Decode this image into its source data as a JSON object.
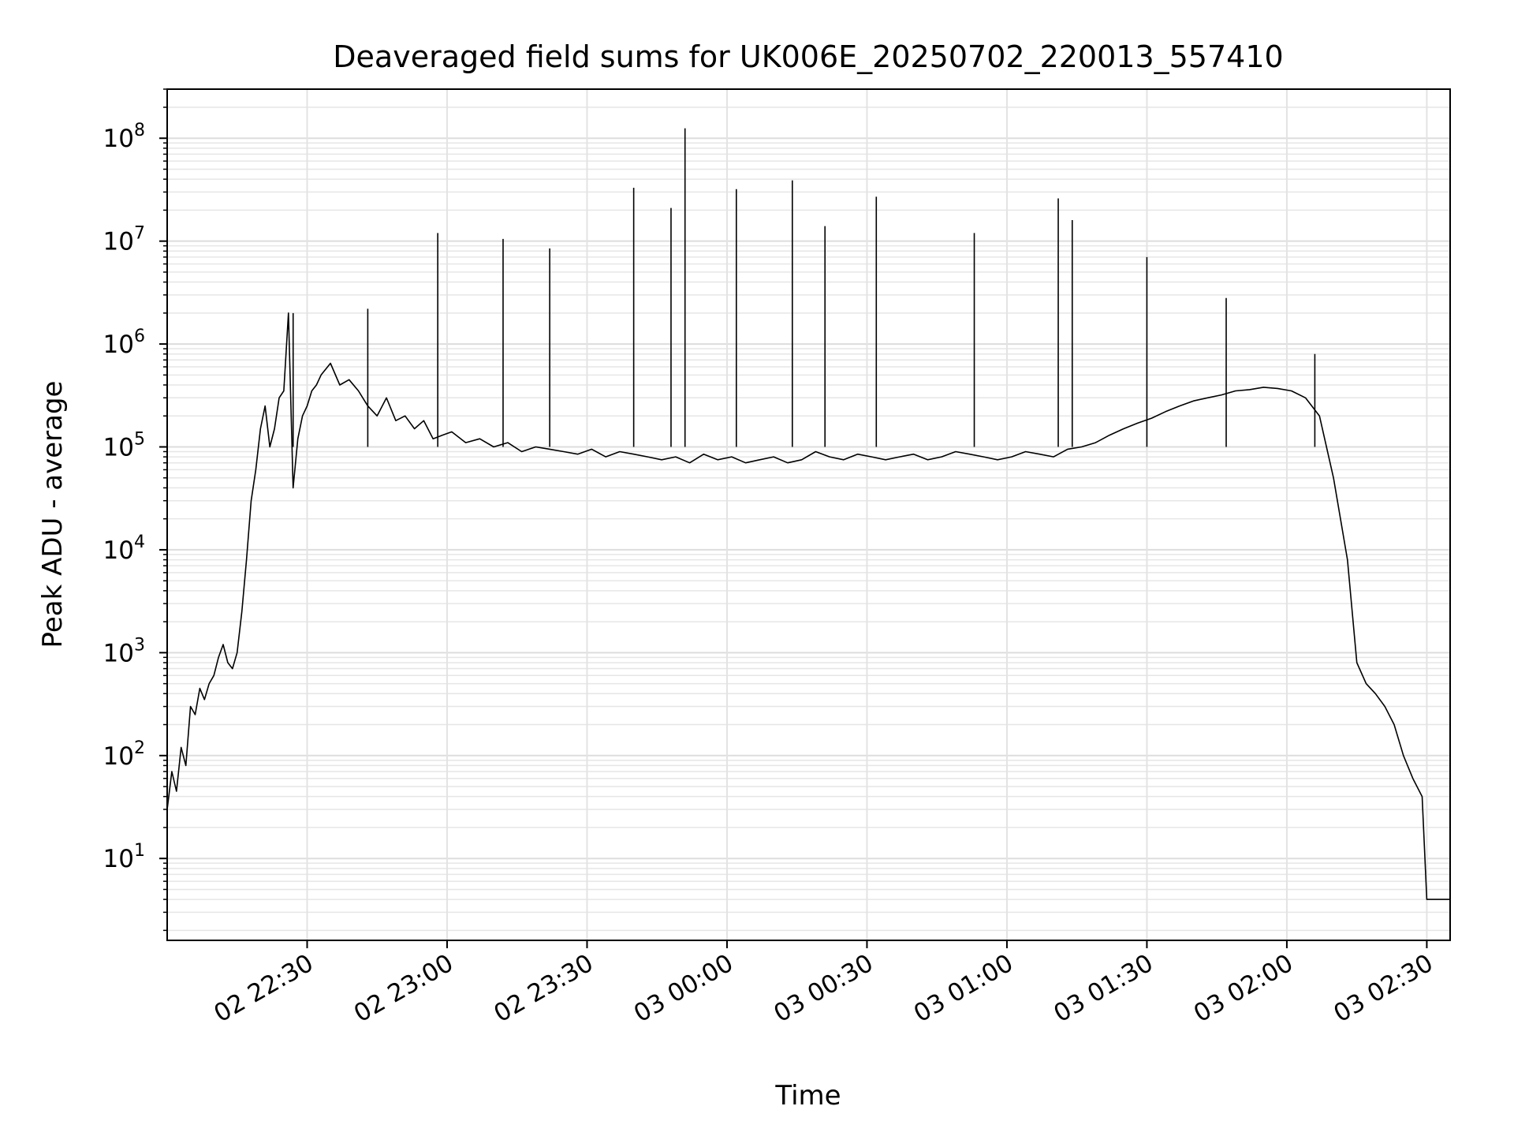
{
  "chart_data": {
    "type": "line",
    "title": "Deaveraged field sums for UK006E_20250702_220013_557410",
    "xlabel": "Time",
    "ylabel": "Peak ADU - average",
    "yscale": "log",
    "ylim": [
      1.6,
      300000000
    ],
    "xlim": [
      "2025-07-02 22:00",
      "2025-07-03 02:35"
    ],
    "grid": true,
    "line_color": "#000000",
    "x_ticks": [
      {
        "t": "2025-07-02 22:30",
        "label": "02 22:30"
      },
      {
        "t": "2025-07-02 23:00",
        "label": "02 23:00"
      },
      {
        "t": "2025-07-02 23:30",
        "label": "02 23:30"
      },
      {
        "t": "2025-07-03 00:00",
        "label": "03 00:00"
      },
      {
        "t": "2025-07-03 00:30",
        "label": "03 00:30"
      },
      {
        "t": "2025-07-03 01:00",
        "label": "03 01:00"
      },
      {
        "t": "2025-07-03 01:30",
        "label": "03 01:30"
      },
      {
        "t": "2025-07-03 02:00",
        "label": "03 02:00"
      },
      {
        "t": "2025-07-03 02:30",
        "label": "03 02:30"
      }
    ],
    "y_ticks": [
      {
        "v": 10,
        "base": "10",
        "exp": "1"
      },
      {
        "v": 100,
        "base": "10",
        "exp": "2"
      },
      {
        "v": 1000,
        "base": "10",
        "exp": "3"
      },
      {
        "v": 10000,
        "base": "10",
        "exp": "4"
      },
      {
        "v": 100000,
        "base": "10",
        "exp": "5"
      },
      {
        "v": 1000000,
        "base": "10",
        "exp": "6"
      },
      {
        "v": 10000000,
        "base": "10",
        "exp": "7"
      },
      {
        "v": 100000000,
        "base": "10",
        "exp": "8"
      }
    ],
    "series": [
      {
        "x": [
          "2025-07-02 22:00",
          "2025-07-02 22:01",
          "2025-07-02 22:02",
          "2025-07-02 22:03",
          "2025-07-02 22:04",
          "2025-07-02 22:05",
          "2025-07-02 22:06",
          "2025-07-02 22:07",
          "2025-07-02 22:08",
          "2025-07-02 22:09",
          "2025-07-02 22:10",
          "2025-07-02 22:11",
          "2025-07-02 22:12",
          "2025-07-02 22:13",
          "2025-07-02 22:14",
          "2025-07-02 22:15",
          "2025-07-02 22:16",
          "2025-07-02 22:17",
          "2025-07-02 22:18",
          "2025-07-02 22:19",
          "2025-07-02 22:20",
          "2025-07-02 22:21",
          "2025-07-02 22:22",
          "2025-07-02 22:23",
          "2025-07-02 22:24",
          "2025-07-02 22:25",
          "2025-07-02 22:26",
          "2025-07-02 22:27",
          "2025-07-02 22:28",
          "2025-07-02 22:29",
          "2025-07-02 22:30",
          "2025-07-02 22:31",
          "2025-07-02 22:32",
          "2025-07-02 22:33",
          "2025-07-02 22:35",
          "2025-07-02 22:37",
          "2025-07-02 22:39",
          "2025-07-02 22:41",
          "2025-07-02 22:43",
          "2025-07-02 22:45",
          "2025-07-02 22:47",
          "2025-07-02 22:49",
          "2025-07-02 22:51",
          "2025-07-02 22:53",
          "2025-07-02 22:55",
          "2025-07-02 22:57",
          "2025-07-02 22:59",
          "2025-07-02 23:01",
          "2025-07-02 23:04",
          "2025-07-02 23:07",
          "2025-07-02 23:10",
          "2025-07-02 23:13",
          "2025-07-02 23:16",
          "2025-07-02 23:19",
          "2025-07-02 23:22",
          "2025-07-02 23:25",
          "2025-07-02 23:28",
          "2025-07-02 23:31",
          "2025-07-02 23:34",
          "2025-07-02 23:37",
          "2025-07-02 23:40",
          "2025-07-02 23:43",
          "2025-07-02 23:46",
          "2025-07-02 23:49",
          "2025-07-02 23:52",
          "2025-07-02 23:55",
          "2025-07-02 23:58",
          "2025-07-03 00:01",
          "2025-07-03 00:04",
          "2025-07-03 00:07",
          "2025-07-03 00:10",
          "2025-07-03 00:13",
          "2025-07-03 00:16",
          "2025-07-03 00:19",
          "2025-07-03 00:22",
          "2025-07-03 00:25",
          "2025-07-03 00:28",
          "2025-07-03 00:31",
          "2025-07-03 00:34",
          "2025-07-03 00:37",
          "2025-07-03 00:40",
          "2025-07-03 00:43",
          "2025-07-03 00:46",
          "2025-07-03 00:49",
          "2025-07-03 00:52",
          "2025-07-03 00:55",
          "2025-07-03 00:58",
          "2025-07-03 01:01",
          "2025-07-03 01:04",
          "2025-07-03 01:07",
          "2025-07-03 01:10",
          "2025-07-03 01:13",
          "2025-07-03 01:16",
          "2025-07-03 01:19",
          "2025-07-03 01:22",
          "2025-07-03 01:25",
          "2025-07-03 01:28",
          "2025-07-03 01:31",
          "2025-07-03 01:34",
          "2025-07-03 01:37",
          "2025-07-03 01:40",
          "2025-07-03 01:43",
          "2025-07-03 01:46",
          "2025-07-03 01:49",
          "2025-07-03 01:52",
          "2025-07-03 01:55",
          "2025-07-03 01:58",
          "2025-07-03 02:01",
          "2025-07-03 02:04",
          "2025-07-03 02:07",
          "2025-07-03 02:10",
          "2025-07-03 02:13",
          "2025-07-03 02:15",
          "2025-07-03 02:17",
          "2025-07-03 02:19",
          "2025-07-03 02:21",
          "2025-07-03 02:23",
          "2025-07-03 02:25",
          "2025-07-03 02:27",
          "2025-07-03 02:29",
          "2025-07-03 02:30",
          "2025-07-03 02:31",
          "2025-07-03 02:33",
          "2025-07-03 02:35"
        ],
        "y": [
          30,
          70,
          45,
          120,
          80,
          300,
          250,
          450,
          350,
          500,
          600,
          900,
          1200,
          800,
          700,
          1000,
          2500,
          8000,
          30000,
          60000,
          150000,
          250000,
          100000,
          150000,
          300000,
          350000,
          2000000,
          40000,
          120000,
          200000,
          250000,
          350000,
          400000,
          500000,
          650000,
          400000,
          450000,
          350000,
          250000,
          200000,
          300000,
          180000,
          200000,
          150000,
          180000,
          120000,
          130000,
          140000,
          110000,
          120000,
          100000,
          110000,
          90000,
          100000,
          95000,
          90000,
          85000,
          95000,
          80000,
          90000,
          85000,
          80000,
          75000,
          80000,
          70000,
          85000,
          75000,
          80000,
          70000,
          75000,
          80000,
          70000,
          75000,
          90000,
          80000,
          75000,
          85000,
          80000,
          75000,
          80000,
          85000,
          75000,
          80000,
          90000,
          85000,
          80000,
          75000,
          80000,
          90000,
          85000,
          80000,
          95000,
          100000,
          110000,
          130000,
          150000,
          170000,
          190000,
          220000,
          250000,
          280000,
          300000,
          320000,
          350000,
          360000,
          380000,
          370000,
          350000,
          300000,
          200000,
          50000,
          8000,
          800,
          500,
          400,
          300,
          200,
          100,
          60,
          40,
          4,
          4,
          4,
          4
        ]
      },
      {
        "x": [
          "2025-07-02 22:27",
          "2025-07-02 22:43",
          "2025-07-02 22:58",
          "2025-07-02 23:12",
          "2025-07-02 23:22",
          "2025-07-02 23:40",
          "2025-07-02 23:48",
          "2025-07-02 23:51",
          "2025-07-03 00:02",
          "2025-07-03 00:14",
          "2025-07-03 00:21",
          "2025-07-03 00:32",
          "2025-07-03 00:53",
          "2025-07-03 01:11",
          "2025-07-03 01:14",
          "2025-07-03 01:30",
          "2025-07-03 01:47",
          "2025-07-03 02:06"
        ],
        "y": [
          2000000,
          2200000,
          12000000,
          10500000,
          8500000,
          33000000,
          21000000,
          125000000,
          32000000,
          39000000,
          14000000,
          27000000,
          12000000,
          26000000,
          16000000,
          7000000,
          2800000,
          800000
        ]
      }
    ]
  }
}
